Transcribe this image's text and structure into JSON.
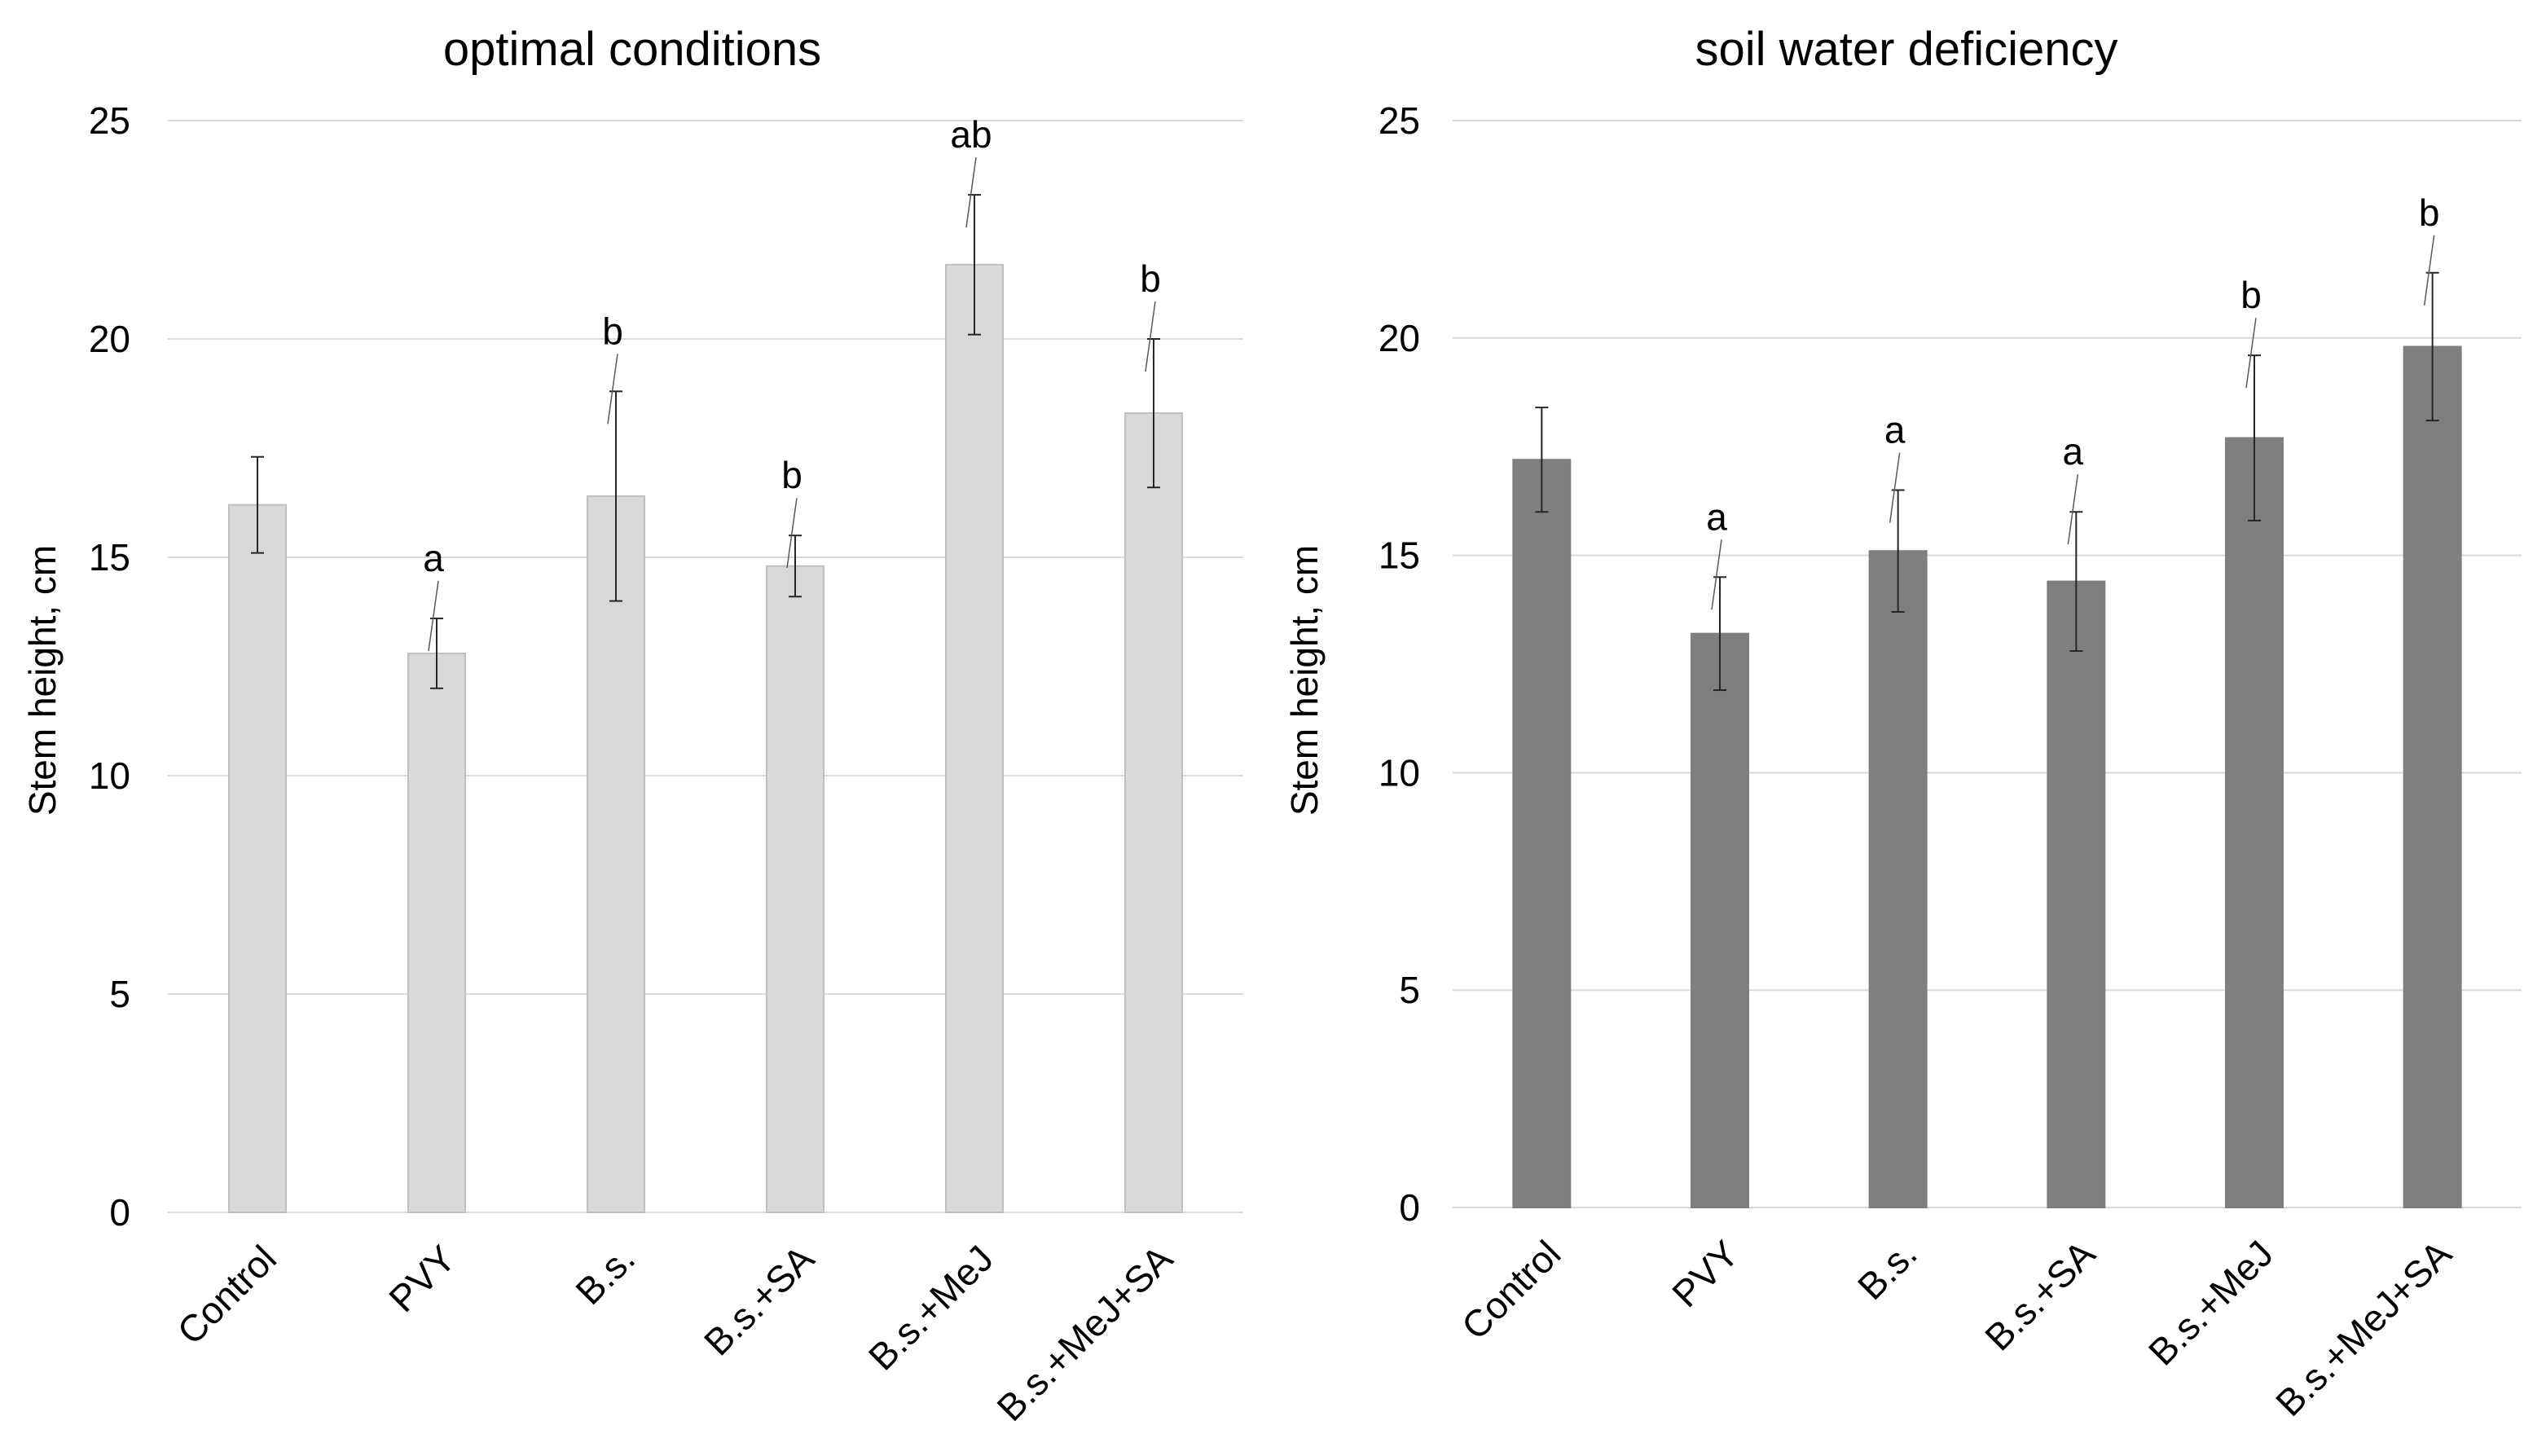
{
  "chart_data": [
    {
      "type": "bar",
      "title": "optimal conditions",
      "xlabel": "",
      "ylabel": "Stem height, cm",
      "ylim": [
        0,
        25
      ],
      "yticks": [
        0,
        5,
        10,
        15,
        20,
        25
      ],
      "grid": true,
      "categories": [
        "Control",
        "PVY",
        "B.s.",
        "B.s.+SA",
        "B.s.+MeJ",
        "B.s.+MeJ+SA"
      ],
      "values": [
        16.2,
        12.8,
        16.4,
        14.8,
        21.7,
        18.3
      ],
      "errors": [
        1.1,
        0.8,
        2.4,
        0.7,
        1.6,
        1.7
      ],
      "significance": [
        "",
        "a",
        "b",
        "b",
        "ab",
        "b"
      ],
      "bar_color": "#d9d9d9",
      "bar_edge_color": "#bfbfbf"
    },
    {
      "type": "bar",
      "title": "soil water deficiency",
      "xlabel": "",
      "ylabel": "Stem height, cm",
      "ylim": [
        0,
        25
      ],
      "yticks": [
        0,
        5,
        10,
        15,
        20,
        25
      ],
      "grid": true,
      "categories": [
        "Control",
        "PVY",
        "B.s.",
        "B.s.+SA",
        "B.s.+MeJ",
        "B.s.+MeJ+SA"
      ],
      "values": [
        17.2,
        13.2,
        15.1,
        14.4,
        17.7,
        19.8
      ],
      "errors": [
        1.2,
        1.3,
        1.4,
        1.6,
        1.9,
        1.7
      ],
      "significance": [
        "",
        "a",
        "a",
        "a",
        "b",
        "b"
      ],
      "bar_color": "#7f7f7f",
      "bar_edge_color": "#7f7f7f"
    }
  ]
}
